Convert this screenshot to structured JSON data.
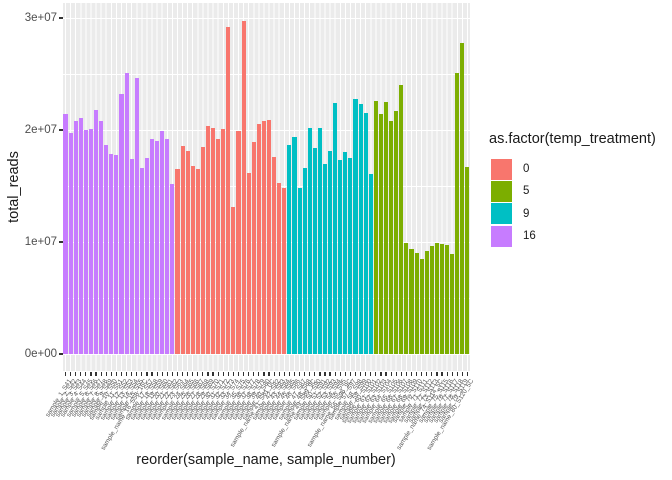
{
  "figure": {
    "background": "#FFFFFF"
  },
  "axes": {
    "x_title": "reorder(sample_name, sample_number)",
    "y_title": "total_reads",
    "y_ticks": [
      {
        "label": "0e+00",
        "value": 0
      },
      {
        "label": "1e+07",
        "value": 10000000
      },
      {
        "label": "2e+07",
        "value": 20000000
      },
      {
        "label": "3e+07",
        "value": 30000000
      }
    ],
    "y_minor_values": [
      5000000,
      15000000,
      25000000
    ]
  },
  "legend": {
    "title": "as.factor(temp_treatment)",
    "items": [
      {
        "label": "0",
        "color": "#F8766D"
      },
      {
        "label": "5",
        "color": "#7CAE00"
      },
      {
        "label": "9",
        "color": "#00BFC4"
      },
      {
        "label": "16",
        "color": "#C77CFF"
      }
    ]
  },
  "panel": {
    "background": "#EBEBEB",
    "gridline_color": "#FFFFFF",
    "tick_color": "#333333"
  },
  "chart_data": {
    "type": "bar",
    "title": "",
    "xlabel": "reorder(sample_name, sample_number)",
    "ylabel": "total_reads",
    "ylim": [
      0,
      30000000
    ],
    "grid": true,
    "legend_position": "right",
    "series_key": "as.factor(temp_treatment)",
    "bars": [
      {
        "name": "sample_1_S41",
        "reads": 21400000,
        "treatment": "16"
      },
      {
        "name": "sample_2_S42",
        "reads": 19700000,
        "treatment": "16"
      },
      {
        "name": "sample_3_S43",
        "reads": 20800000,
        "treatment": "16"
      },
      {
        "name": "sample_4_S44",
        "reads": 21100000,
        "treatment": "16"
      },
      {
        "name": "sample_5_S45",
        "reads": 20000000,
        "treatment": "16"
      },
      {
        "name": "sample_6_S46",
        "reads": 20100000,
        "treatment": "16"
      },
      {
        "name": "sample_7_S47",
        "reads": 21800000,
        "treatment": "16"
      },
      {
        "name": "sample_8_S48",
        "reads": 20800000,
        "treatment": "16"
      },
      {
        "name": "sample_9_S49",
        "reads": 18700000,
        "treatment": "16"
      },
      {
        "name": "sample_10_S50",
        "reads": 17900000,
        "treatment": "16"
      },
      {
        "name": "sample_11_S51",
        "reads": 17800000,
        "treatment": "16"
      },
      {
        "name": "sample_12_S52",
        "reads": 23200000,
        "treatment": "16"
      },
      {
        "name": "sample_13_S53",
        "reads": 25100000,
        "treatment": "16"
      },
      {
        "name": "sample_14_S54",
        "reads": 17400000,
        "treatment": "16"
      },
      {
        "name": "sample_15_S55",
        "reads": 24600000,
        "treatment": "16"
      },
      {
        "name": "sample_name_16_S56_16C",
        "reads": 16600000,
        "treatment": "16"
      },
      {
        "name": "sample_17_S57",
        "reads": 17500000,
        "treatment": "16"
      },
      {
        "name": "sample_18_S58",
        "reads": 19200000,
        "treatment": "16"
      },
      {
        "name": "sample_19_S59",
        "reads": 19000000,
        "treatment": "16"
      },
      {
        "name": "sample_20_S60",
        "reads": 19900000,
        "treatment": "16"
      },
      {
        "name": "sample_21_S61",
        "reads": 19200000,
        "treatment": "16"
      },
      {
        "name": "sample_22_S62",
        "reads": 15200000,
        "treatment": "16"
      },
      {
        "name": "sample_23_S63",
        "reads": 16500000,
        "treatment": "0"
      },
      {
        "name": "sample_24_S64",
        "reads": 18600000,
        "treatment": "0"
      },
      {
        "name": "sample_25_S65",
        "reads": 18100000,
        "treatment": "0"
      },
      {
        "name": "sample_26_S66",
        "reads": 16800000,
        "treatment": "0"
      },
      {
        "name": "sample_27_S67",
        "reads": 16500000,
        "treatment": "0"
      },
      {
        "name": "sample_28_S68",
        "reads": 18500000,
        "treatment": "0"
      },
      {
        "name": "sample_29_S69",
        "reads": 20400000,
        "treatment": "0"
      },
      {
        "name": "sample_30_S70",
        "reads": 20200000,
        "treatment": "0"
      },
      {
        "name": "sample_31_S71",
        "reads": 19200000,
        "treatment": "0"
      },
      {
        "name": "sample_32_S72",
        "reads": 20100000,
        "treatment": "0"
      },
      {
        "name": "sample_33_S73",
        "reads": 29200000,
        "treatment": "0"
      },
      {
        "name": "sample_34_S74",
        "reads": 13100000,
        "treatment": "0"
      },
      {
        "name": "sample_35_S75",
        "reads": 19900000,
        "treatment": "0"
      },
      {
        "name": "sample_36_S76",
        "reads": 29700000,
        "treatment": "0"
      },
      {
        "name": "sample_37_S77",
        "reads": 16200000,
        "treatment": "0"
      },
      {
        "name": "sample_38_S78",
        "reads": 18900000,
        "treatment": "0"
      },
      {
        "name": "sample_39_S79",
        "reads": 20500000,
        "treatment": "0"
      },
      {
        "name": "sample_40_S80",
        "reads": 20800000,
        "treatment": "0"
      },
      {
        "name": "sample_name_41_S81_0C",
        "reads": 20900000,
        "treatment": "0"
      },
      {
        "name": "sample_42_S82",
        "reads": 17600000,
        "treatment": "0"
      },
      {
        "name": "sample_43_S83",
        "reads": 15300000,
        "treatment": "0"
      },
      {
        "name": "sample_44_S84",
        "reads": 14800000,
        "treatment": "0"
      },
      {
        "name": "sample_45_S85",
        "reads": 18700000,
        "treatment": "9"
      },
      {
        "name": "sample_46_S86",
        "reads": 19400000,
        "treatment": "9"
      },
      {
        "name": "sample_47_S87",
        "reads": 14800000,
        "treatment": "9"
      },
      {
        "name": "sample_48_S88",
        "reads": 16600000,
        "treatment": "9"
      },
      {
        "name": "sample_name_49_S89_9C",
        "reads": 20200000,
        "treatment": "9"
      },
      {
        "name": "sample_50_S90",
        "reads": 18400000,
        "treatment": "9"
      },
      {
        "name": "sample_51_S91",
        "reads": 20200000,
        "treatment": "9"
      },
      {
        "name": "sample_52_S92",
        "reads": 17000000,
        "treatment": "9"
      },
      {
        "name": "sample_53_S93",
        "reads": 18100000,
        "treatment": "9"
      },
      {
        "name": "sample_54_S94",
        "reads": 22400000,
        "treatment": "9"
      },
      {
        "name": "sample_55_S95",
        "reads": 17300000,
        "treatment": "9"
      },
      {
        "name": "sample_name_56_S96_9C",
        "reads": 18000000,
        "treatment": "9"
      },
      {
        "name": "sample_57_S97",
        "reads": 17500000,
        "treatment": "9"
      },
      {
        "name": "sample_58_S98",
        "reads": 22800000,
        "treatment": "9"
      },
      {
        "name": "sample_59_S99",
        "reads": 22300000,
        "treatment": "9"
      },
      {
        "name": "sample_60_S100",
        "reads": 21500000,
        "treatment": "9"
      },
      {
        "name": "sample_61_S101",
        "reads": 16100000,
        "treatment": "9"
      },
      {
        "name": "sample_62_S102",
        "reads": 22600000,
        "treatment": "5"
      },
      {
        "name": "sample_63_S103",
        "reads": 21400000,
        "treatment": "5"
      },
      {
        "name": "sample_64_S104",
        "reads": 22500000,
        "treatment": "5"
      },
      {
        "name": "sample_65_S105",
        "reads": 20800000,
        "treatment": "5"
      },
      {
        "name": "sample_66_S106",
        "reads": 21700000,
        "treatment": "5"
      },
      {
        "name": "sample_67_S107",
        "reads": 24000000,
        "treatment": "5"
      },
      {
        "name": "sample_68_S108",
        "reads": 9900000,
        "treatment": "5"
      },
      {
        "name": "sample_69_S109",
        "reads": 9400000,
        "treatment": "5"
      },
      {
        "name": "sample_70_S110",
        "reads": 9000000,
        "treatment": "5"
      },
      {
        "name": "sample_71_S111",
        "reads": 8500000,
        "treatment": "5"
      },
      {
        "name": "sample_72_S112",
        "reads": 9200000,
        "treatment": "5"
      },
      {
        "name": "sample_73_S113",
        "reads": 9600000,
        "treatment": "5"
      },
      {
        "name": "sample_name_74_S114_5C",
        "reads": 9900000,
        "treatment": "5"
      },
      {
        "name": "sample_75_S115",
        "reads": 9800000,
        "treatment": "5"
      },
      {
        "name": "sample_76_S116",
        "reads": 9700000,
        "treatment": "5"
      },
      {
        "name": "sample_77_S117",
        "reads": 8900000,
        "treatment": "5"
      },
      {
        "name": "sample_78_S118",
        "reads": 25100000,
        "treatment": "5"
      },
      {
        "name": "sample_79_S119",
        "reads": 27800000,
        "treatment": "5"
      },
      {
        "name": "sample_name_80_S120_5C",
        "reads": 16700000,
        "treatment": "5"
      }
    ]
  }
}
